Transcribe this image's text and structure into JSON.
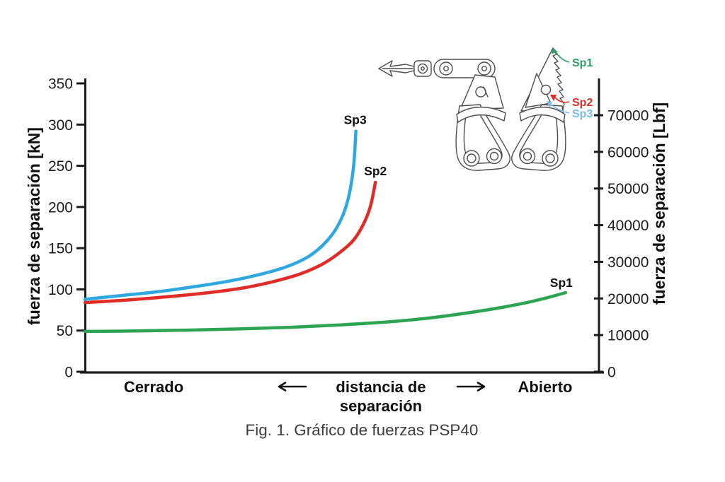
{
  "figure": {
    "caption": "Fig. 1. Gráfico de fuerzas PSP40"
  },
  "chart_data": {
    "type": "line",
    "title": "Fig. 1. Gráfico de fuerzas PSP40",
    "x_axis": {
      "label_closed": "Cerrado",
      "label_distance": [
        "distancia de",
        "separación"
      ],
      "label_open": "Abierto",
      "meaning": "distancia de separación, 0 = cerrado, 1 = abierto (sin escala numérica)"
    },
    "y_left": {
      "label": "fuerza de separación [kN]",
      "units": "kN",
      "range": [
        0,
        350
      ],
      "ticks": [
        0,
        50,
        100,
        150,
        200,
        250,
        300,
        350
      ]
    },
    "y_right": {
      "label": "fuerza de separación [Lbf]",
      "units": "Lbf",
      "range": [
        0,
        78000
      ],
      "ticks": [
        0,
        10000,
        20000,
        30000,
        40000,
        50000,
        60000,
        70000
      ],
      "lbf_per_kN": 224.809
    },
    "grid": false,
    "legend_position": "curve-end-labels",
    "series": [
      {
        "name": "Sp1",
        "color": "#2ca452",
        "points": [
          [
            0,
            49
          ],
          [
            0.1,
            49.5
          ],
          [
            0.2,
            50.5
          ],
          [
            0.3,
            52
          ],
          [
            0.4,
            54
          ],
          [
            0.5,
            57
          ],
          [
            0.6,
            61
          ],
          [
            0.68,
            66
          ],
          [
            0.75,
            72
          ],
          [
            0.81,
            78
          ],
          [
            0.86,
            84
          ],
          [
            0.9,
            90
          ],
          [
            0.935,
            96
          ]
        ]
      },
      {
        "name": "Sp2",
        "color": "#e02b27",
        "points": [
          [
            0,
            84
          ],
          [
            0.08,
            87
          ],
          [
            0.16,
            91
          ],
          [
            0.24,
            96
          ],
          [
            0.31,
            102
          ],
          [
            0.37,
            110
          ],
          [
            0.42,
            119
          ],
          [
            0.46,
            130
          ],
          [
            0.49,
            142
          ],
          [
            0.52,
            158
          ],
          [
            0.54,
            177
          ],
          [
            0.555,
            200
          ],
          [
            0.565,
            230
          ]
        ]
      },
      {
        "name": "Sp3",
        "color": "#2fa8df",
        "points": [
          [
            0,
            88
          ],
          [
            0.07,
            92.5
          ],
          [
            0.14,
            97
          ],
          [
            0.21,
            103
          ],
          [
            0.28,
            110
          ],
          [
            0.34,
            118
          ],
          [
            0.39,
            127
          ],
          [
            0.43,
            138
          ],
          [
            0.46,
            152
          ],
          [
            0.485,
            170
          ],
          [
            0.503,
            192
          ],
          [
            0.515,
            218
          ],
          [
            0.523,
            252
          ],
          [
            0.527,
            292
          ]
        ]
      }
    ]
  },
  "illustration": {
    "description": "line drawing of PSP40 hydraulic spreader jaws",
    "labels": [
      {
        "text": "Sp1",
        "color": "#2e9e63"
      },
      {
        "text": "Sp2",
        "color": "#e02b27"
      },
      {
        "text": "Sp3",
        "color": "#7cbce9"
      }
    ]
  },
  "colors": {
    "axis": "#1c1c1c",
    "text": "#111111",
    "caption": "#3d3d3d",
    "line_art": "#4d4d4d",
    "background": "#ffffff"
  }
}
